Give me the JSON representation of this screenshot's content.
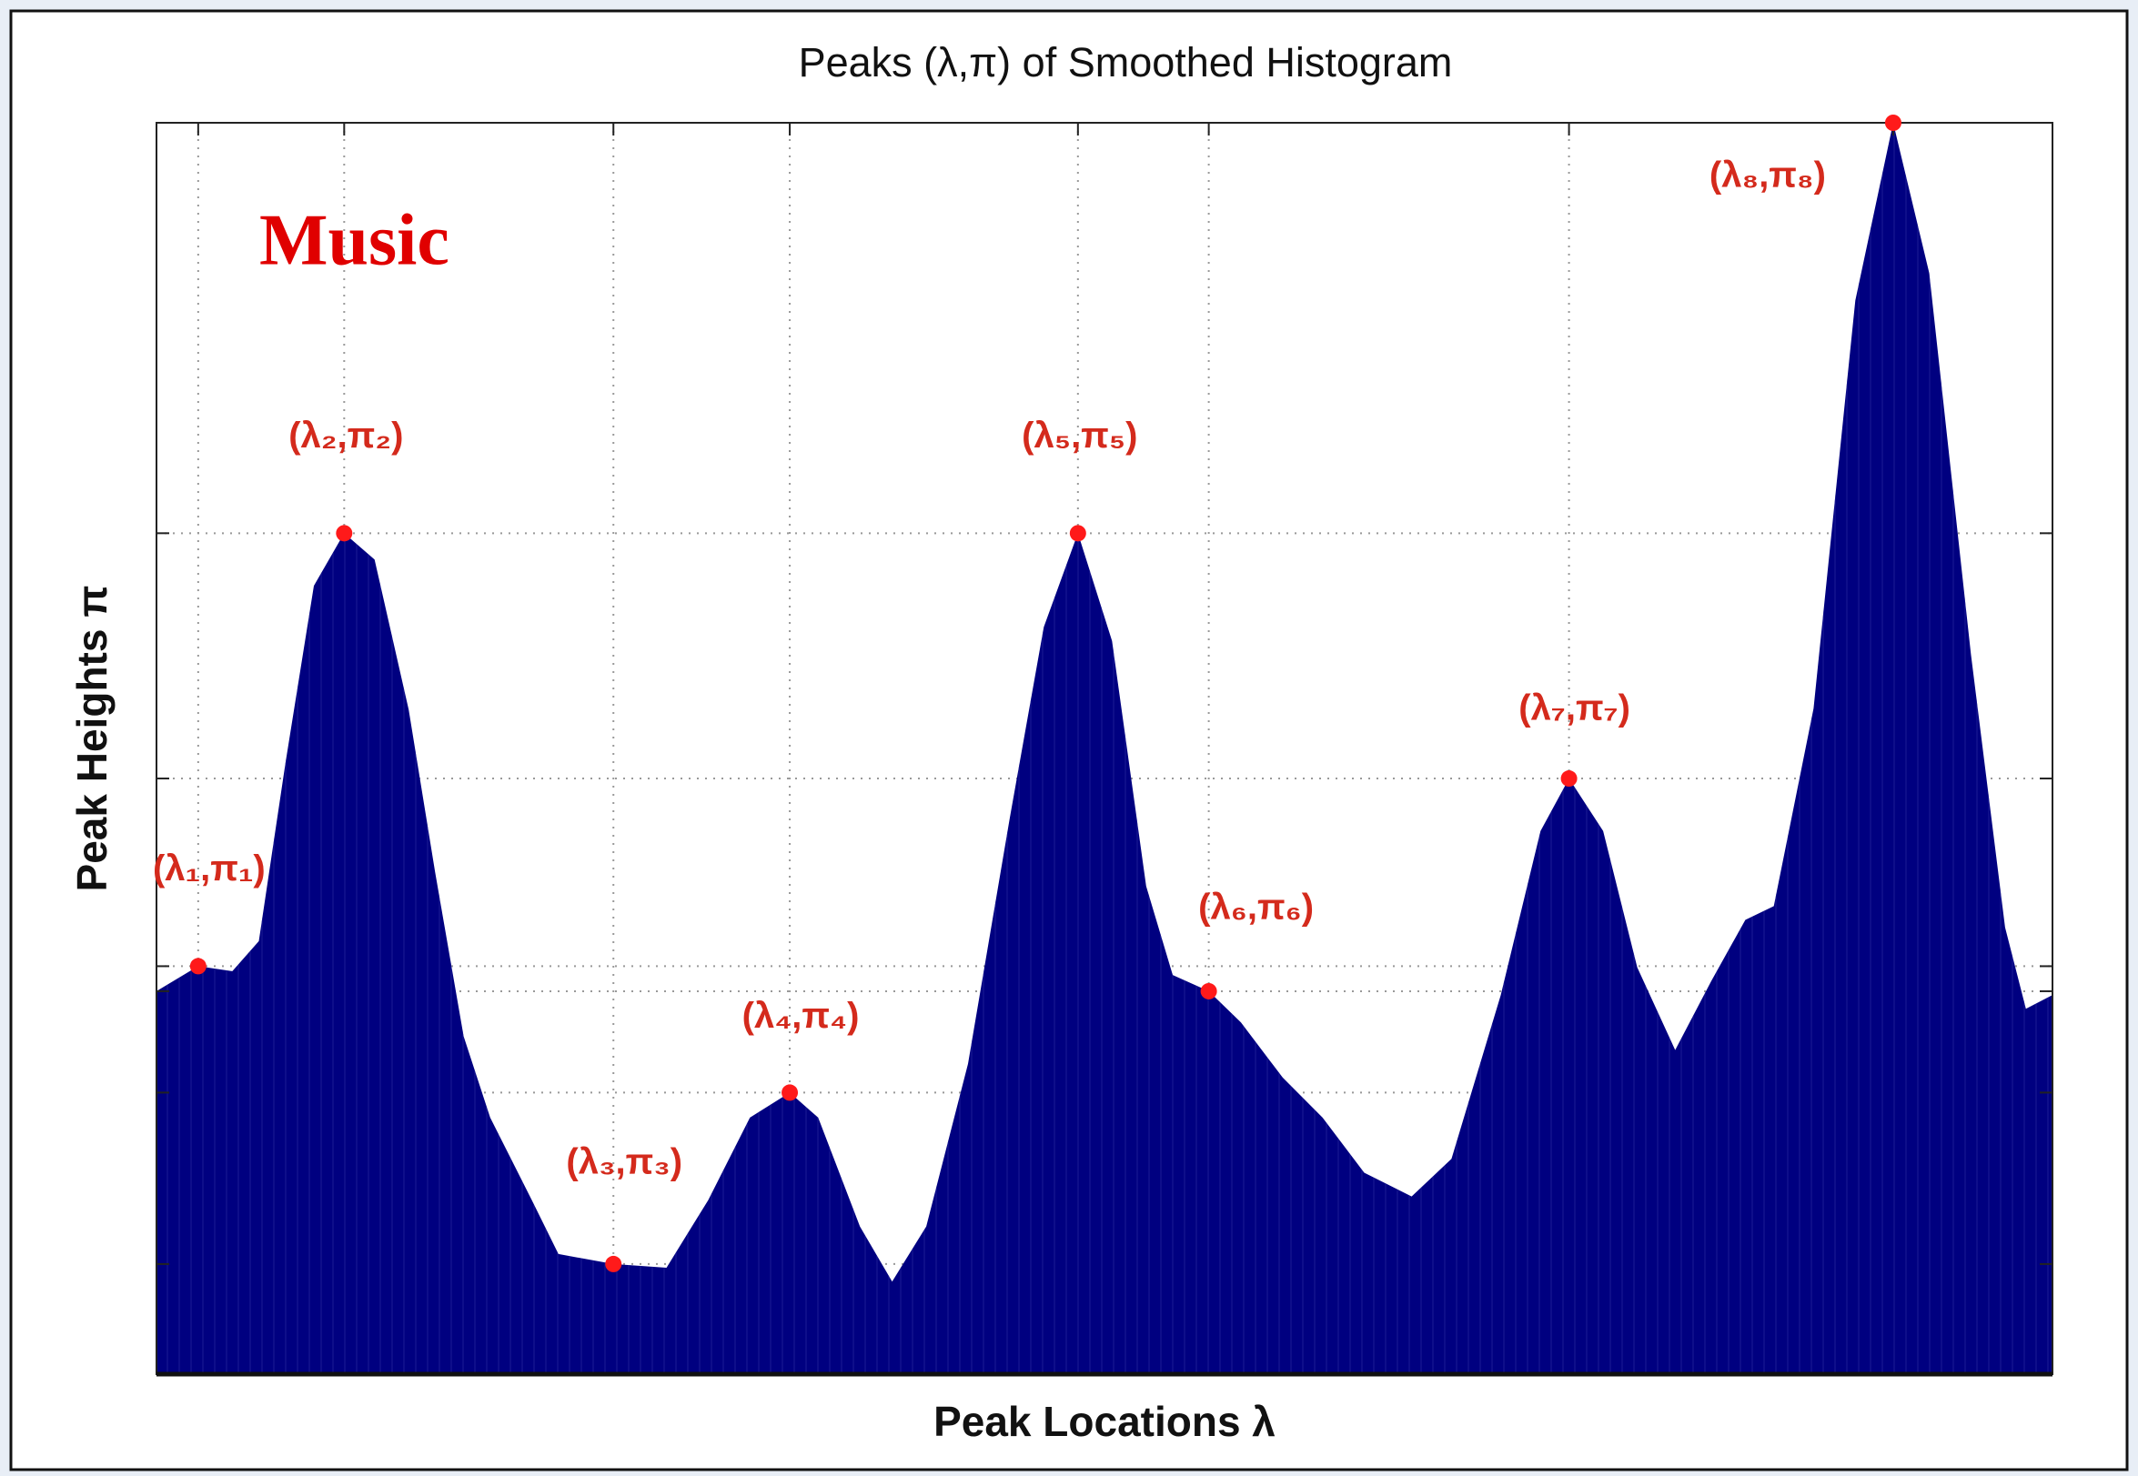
{
  "chart_data": {
    "type": "area",
    "title": "Peaks (λ,π) of Smoothed Histogram",
    "x_label": "Peak Locations λ",
    "y_label": "Peak Heights π",
    "annotation": "Music",
    "color": "#000080",
    "x": [
      0,
      2.2,
      4.0,
      5.4,
      6.8,
      8.3,
      9.9,
      11.5,
      13.3,
      14.7,
      16.2,
      17.6,
      19.8,
      21.2,
      24.1,
      26.9,
      29.1,
      31.3,
      33.4,
      34.9,
      37.1,
      38.8,
      40.6,
      42.8,
      45.0,
      46.8,
      48.6,
      50.4,
      52.2,
      53.6,
      55.5,
      57.2,
      59.4,
      61.5,
      63.7,
      66.2,
      68.3,
      70.9,
      73.0,
      74.5,
      76.3,
      78.1,
      80.1,
      82.0,
      83.8,
      85.3,
      87.4,
      89.6,
      91.6,
      93.5,
      95.7,
      97.5,
      98.6,
      100
    ],
    "values": [
      30.6,
      32.6,
      32.2,
      34.6,
      48.8,
      63.0,
      67.2,
      65.1,
      53.1,
      40.1,
      27.0,
      20.5,
      13.9,
      9.6,
      8.8,
      8.5,
      13.9,
      20.5,
      22.5,
      20.5,
      11.8,
      7.4,
      11.8,
      24.8,
      44.4,
      59.7,
      67.2,
      58.6,
      39.0,
      31.9,
      30.6,
      28.1,
      23.7,
      20.5,
      16.1,
      14.2,
      17.2,
      30.3,
      43.4,
      47.6,
      43.4,
      32.5,
      25.9,
      31.4,
      36.3,
      37.4,
      53.2,
      85.8,
      100,
      88.0,
      57.5,
      35.7,
      29.2,
      30.3
    ],
    "peaks": {
      "name": "peaks",
      "color": "#ff1a1a",
      "x": [
        2.2,
        9.9,
        24.1,
        33.4,
        48.6,
        55.5,
        74.5,
        91.6
      ],
      "values": [
        32.6,
        67.2,
        8.8,
        22.5,
        67.2,
        30.6,
        47.6,
        100
      ],
      "labels": [
        "(λ₁,π₁)",
        "(λ₂,π₂)",
        "(λ₃,π₃)",
        "(λ₄,π₄)",
        "(λ₅,π₅)",
        "(λ₆,π₆)",
        "(λ₇,π₇)",
        "(λ₈,π₈)"
      ]
    },
    "xlim": [
      0,
      100
    ],
    "ylim": [
      0,
      100
    ],
    "xticks": [
      2.2,
      9.9,
      24.1,
      33.4,
      48.6,
      55.5,
      74.5,
      91.6
    ],
    "yticks": [
      8.8,
      22.5,
      30.6,
      32.6,
      47.6,
      67.2,
      100
    ],
    "grid": true
  }
}
